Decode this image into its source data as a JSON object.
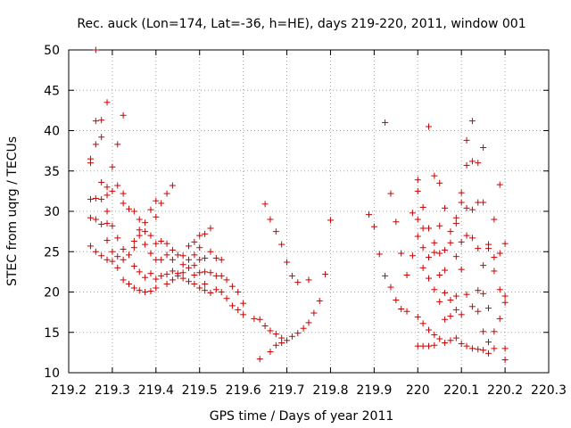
{
  "chart_data": {
    "type": "scatter",
    "title": "Rec. auck (Lon=174, Lat=-36, h=HE), days 219-220, 2011, window 001",
    "xlabel": "GPS time / Days of year 2011",
    "ylabel": "STEC from uqrg / TECUs",
    "xlim": [
      219.2,
      220.3
    ],
    "ylim": [
      10,
      50
    ],
    "xticks": [
      "219.2",
      "219.3",
      "219.4",
      "219.5",
      "219.6",
      "219.7",
      "219.8",
      "219.9",
      "220",
      "220.1",
      "220.2",
      "220.3"
    ],
    "yticks": [
      "10",
      "15",
      "20",
      "25",
      "30",
      "35",
      "40",
      "45",
      "50"
    ],
    "grid": true,
    "marker": "plus",
    "color": "#cc0000",
    "points": [
      [
        219.25,
        36.5
      ],
      [
        219.25,
        36.0
      ],
      [
        219.25,
        31.5
      ],
      [
        219.25,
        29.2
      ],
      [
        219.25,
        25.7
      ],
      [
        219.262,
        50.0
      ],
      [
        219.262,
        41.2
      ],
      [
        219.262,
        38.3
      ],
      [
        219.262,
        31.6
      ],
      [
        219.262,
        29.0
      ],
      [
        219.262,
        25.0
      ],
      [
        219.275,
        41.3
      ],
      [
        219.275,
        39.2
      ],
      [
        219.275,
        33.6
      ],
      [
        219.275,
        31.5
      ],
      [
        219.275,
        28.4
      ],
      [
        219.275,
        24.5
      ],
      [
        219.288,
        43.5
      ],
      [
        219.288,
        33.0
      ],
      [
        219.288,
        32.0
      ],
      [
        219.288,
        30.0
      ],
      [
        219.288,
        28.5
      ],
      [
        219.288,
        26.4
      ],
      [
        219.288,
        24.0
      ],
      [
        219.3,
        35.5
      ],
      [
        219.3,
        32.5
      ],
      [
        219.3,
        28.2
      ],
      [
        219.3,
        25.0
      ],
      [
        219.3,
        23.8
      ],
      [
        219.312,
        38.3
      ],
      [
        219.312,
        33.2
      ],
      [
        219.312,
        26.7
      ],
      [
        219.312,
        24.4
      ],
      [
        219.312,
        23.0
      ],
      [
        219.325,
        41.9
      ],
      [
        219.325,
        32.2
      ],
      [
        219.325,
        31.0
      ],
      [
        219.325,
        25.3
      ],
      [
        219.325,
        24.0
      ],
      [
        219.325,
        21.5
      ],
      [
        219.338,
        30.3
      ],
      [
        219.338,
        24.6
      ],
      [
        219.338,
        21.0
      ],
      [
        219.35,
        30.0
      ],
      [
        219.35,
        26.3
      ],
      [
        219.35,
        25.5
      ],
      [
        219.35,
        23.2
      ],
      [
        219.35,
        20.5
      ],
      [
        219.362,
        29.0
      ],
      [
        219.362,
        27.7
      ],
      [
        219.362,
        27.0
      ],
      [
        219.362,
        22.5
      ],
      [
        219.362,
        20.2
      ],
      [
        219.375,
        28.6
      ],
      [
        219.375,
        27.5
      ],
      [
        219.375,
        25.9
      ],
      [
        219.375,
        21.8
      ],
      [
        219.375,
        20.0
      ],
      [
        219.388,
        30.2
      ],
      [
        219.388,
        27.0
      ],
      [
        219.388,
        24.8
      ],
      [
        219.388,
        22.3
      ],
      [
        219.388,
        20.1
      ],
      [
        219.4,
        31.3
      ],
      [
        219.4,
        29.3
      ],
      [
        219.4,
        26.0
      ],
      [
        219.4,
        24.0
      ],
      [
        219.4,
        21.6
      ],
      [
        219.4,
        20.5
      ],
      [
        219.412,
        31.0
      ],
      [
        219.412,
        26.3
      ],
      [
        219.412,
        24.0
      ],
      [
        219.412,
        22.0
      ],
      [
        219.425,
        32.2
      ],
      [
        219.425,
        26.0
      ],
      [
        219.425,
        24.6
      ],
      [
        219.425,
        22.2
      ],
      [
        219.425,
        21.0
      ],
      [
        219.438,
        33.2
      ],
      [
        219.438,
        25.2
      ],
      [
        219.438,
        24.0
      ],
      [
        219.438,
        22.6
      ],
      [
        219.438,
        21.5
      ],
      [
        219.45,
        24.6
      ],
      [
        219.45,
        22.3
      ],
      [
        219.45,
        22.0
      ],
      [
        219.462,
        24.5
      ],
      [
        219.462,
        23.4
      ],
      [
        219.462,
        22.4
      ],
      [
        219.462,
        21.7
      ],
      [
        219.475,
        25.7
      ],
      [
        219.475,
        24.0
      ],
      [
        219.475,
        23.0
      ],
      [
        219.475,
        21.3
      ],
      [
        219.488,
        26.2
      ],
      [
        219.488,
        24.6
      ],
      [
        219.488,
        23.3
      ],
      [
        219.488,
        22.1
      ],
      [
        219.488,
        21.0
      ],
      [
        219.5,
        27.0
      ],
      [
        219.5,
        25.5
      ],
      [
        219.5,
        24.0
      ],
      [
        219.5,
        22.4
      ],
      [
        219.5,
        20.5
      ],
      [
        219.512,
        27.2
      ],
      [
        219.512,
        24.2
      ],
      [
        219.512,
        22.5
      ],
      [
        219.512,
        21.0
      ],
      [
        219.512,
        20.2
      ],
      [
        219.525,
        27.9
      ],
      [
        219.525,
        25.0
      ],
      [
        219.525,
        22.4
      ],
      [
        219.525,
        19.9
      ],
      [
        219.538,
        24.2
      ],
      [
        219.538,
        22.0
      ],
      [
        219.538,
        20.3
      ],
      [
        219.55,
        24.0
      ],
      [
        219.55,
        22.0
      ],
      [
        219.55,
        20.0
      ],
      [
        219.562,
        21.5
      ],
      [
        219.562,
        19.2
      ],
      [
        219.575,
        20.7
      ],
      [
        219.575,
        18.3
      ],
      [
        219.588,
        20.0
      ],
      [
        219.588,
        17.8
      ],
      [
        219.6,
        18.6
      ],
      [
        219.6,
        17.2
      ],
      [
        219.625,
        16.7
      ],
      [
        219.638,
        16.6
      ],
      [
        219.638,
        11.7
      ],
      [
        219.65,
        15.8
      ],
      [
        219.65,
        30.9
      ],
      [
        219.662,
        29.0
      ],
      [
        219.662,
        12.6
      ],
      [
        219.662,
        15.2
      ],
      [
        219.675,
        27.5
      ],
      [
        219.675,
        14.8
      ],
      [
        219.675,
        13.4
      ],
      [
        219.688,
        25.9
      ],
      [
        219.688,
        14.3
      ],
      [
        219.688,
        13.7
      ],
      [
        219.7,
        23.7
      ],
      [
        219.7,
        14.0
      ],
      [
        219.712,
        22.0
      ],
      [
        219.712,
        14.5
      ],
      [
        219.725,
        21.2
      ],
      [
        219.725,
        14.9
      ],
      [
        219.738,
        15.5
      ],
      [
        219.75,
        21.5
      ],
      [
        219.75,
        16.2
      ],
      [
        219.762,
        17.4
      ],
      [
        219.775,
        18.9
      ],
      [
        219.788,
        22.2
      ],
      [
        219.8,
        28.9
      ],
      [
        219.888,
        29.6
      ],
      [
        219.9,
        28.1
      ],
      [
        219.912,
        24.7
      ],
      [
        219.925,
        41.0
      ],
      [
        219.925,
        22.0
      ],
      [
        219.938,
        32.2
      ],
      [
        219.938,
        20.6
      ],
      [
        219.95,
        28.7
      ],
      [
        219.95,
        19.0
      ],
      [
        219.962,
        24.8
      ],
      [
        219.962,
        17.9
      ],
      [
        219.975,
        22.1
      ],
      [
        219.975,
        17.6
      ],
      [
        219.988,
        29.8
      ],
      [
        219.988,
        24.5
      ],
      [
        220.0,
        33.9
      ],
      [
        220.0,
        32.5
      ],
      [
        220.0,
        29.0
      ],
      [
        220.0,
        26.9
      ],
      [
        220.0,
        16.9
      ],
      [
        220.0,
        13.3
      ],
      [
        220.012,
        30.5
      ],
      [
        220.012,
        27.9
      ],
      [
        220.012,
        25.5
      ],
      [
        220.012,
        23.0
      ],
      [
        220.012,
        16.1
      ],
      [
        220.012,
        13.3
      ],
      [
        220.025,
        40.5
      ],
      [
        220.025,
        27.9
      ],
      [
        220.025,
        24.3
      ],
      [
        220.025,
        21.7
      ],
      [
        220.025,
        15.3
      ],
      [
        220.025,
        13.3
      ],
      [
        220.038,
        34.4
      ],
      [
        220.038,
        26.1
      ],
      [
        220.038,
        24.9
      ],
      [
        220.038,
        20.3
      ],
      [
        220.038,
        14.7
      ],
      [
        220.038,
        13.4
      ],
      [
        220.05,
        33.5
      ],
      [
        220.05,
        28.2
      ],
      [
        220.05,
        24.8
      ],
      [
        220.05,
        22.1
      ],
      [
        220.05,
        18.8
      ],
      [
        220.05,
        14.2
      ],
      [
        220.062,
        30.4
      ],
      [
        220.062,
        25.2
      ],
      [
        220.062,
        22.7
      ],
      [
        220.062,
        19.9
      ],
      [
        220.062,
        16.6
      ],
      [
        220.062,
        13.7
      ],
      [
        220.075,
        27.5
      ],
      [
        220.075,
        26.1
      ],
      [
        220.075,
        19.0
      ],
      [
        220.075,
        17.0
      ],
      [
        220.075,
        14.0
      ],
      [
        220.088,
        29.2
      ],
      [
        220.088,
        28.5
      ],
      [
        220.088,
        24.4
      ],
      [
        220.088,
        19.5
      ],
      [
        220.088,
        17.8
      ],
      [
        220.088,
        14.3
      ],
      [
        220.1,
        32.3
      ],
      [
        220.1,
        31.1
      ],
      [
        220.1,
        26.2
      ],
      [
        220.1,
        22.8
      ],
      [
        220.1,
        17.2
      ],
      [
        220.1,
        13.6
      ],
      [
        220.112,
        38.8
      ],
      [
        220.112,
        35.7
      ],
      [
        220.112,
        30.4
      ],
      [
        220.112,
        27.0
      ],
      [
        220.112,
        19.7
      ],
      [
        220.112,
        13.3
      ],
      [
        220.125,
        41.2
      ],
      [
        220.125,
        36.2
      ],
      [
        220.125,
        30.2
      ],
      [
        220.125,
        26.7
      ],
      [
        220.125,
        18.2
      ],
      [
        220.125,
        13.0
      ],
      [
        220.138,
        36.0
      ],
      [
        220.138,
        31.1
      ],
      [
        220.138,
        25.4
      ],
      [
        220.138,
        20.2
      ],
      [
        220.138,
        17.6
      ],
      [
        220.138,
        12.9
      ],
      [
        220.15,
        37.9
      ],
      [
        220.15,
        31.1
      ],
      [
        220.15,
        23.3
      ],
      [
        220.15,
        19.8
      ],
      [
        220.15,
        15.1
      ],
      [
        220.15,
        12.8
      ],
      [
        220.162,
        25.9
      ],
      [
        220.162,
        25.4
      ],
      [
        220.162,
        18.0
      ],
      [
        220.162,
        13.8
      ],
      [
        220.162,
        12.4
      ],
      [
        220.175,
        29.0
      ],
      [
        220.175,
        24.3
      ],
      [
        220.175,
        22.6
      ],
      [
        220.175,
        15.1
      ],
      [
        220.175,
        13.0
      ],
      [
        220.188,
        33.3
      ],
      [
        220.188,
        24.8
      ],
      [
        220.188,
        20.3
      ],
      [
        220.188,
        16.7
      ],
      [
        220.2,
        26.0
      ],
      [
        220.2,
        19.5
      ],
      [
        220.2,
        18.7
      ],
      [
        220.2,
        13.0
      ],
      [
        220.2,
        11.6
      ]
    ]
  }
}
